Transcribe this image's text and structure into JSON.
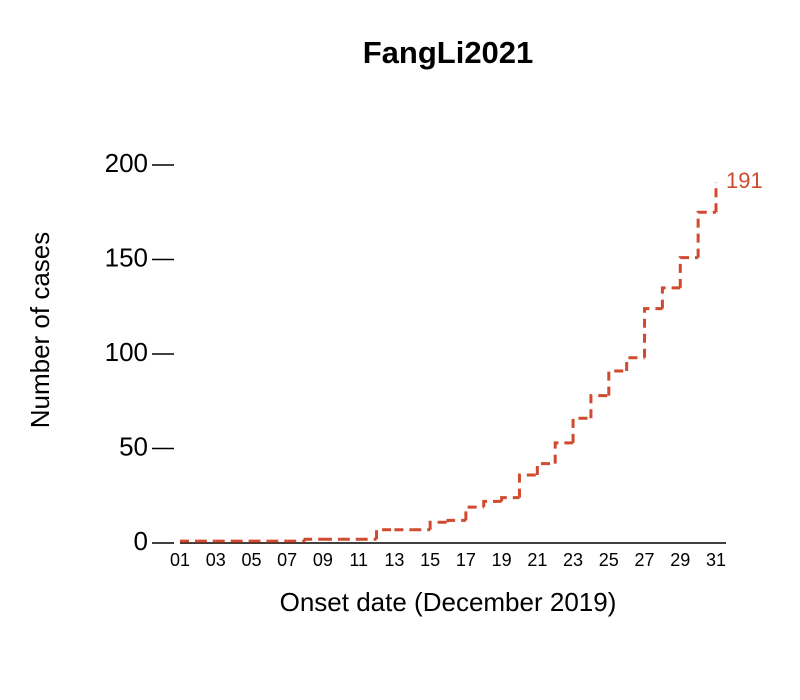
{
  "chart_data": {
    "type": "step",
    "title": "FangLi2021",
    "xlabel": "Onset date (December 2019)",
    "ylabel": "Number of cases",
    "x": [
      1,
      2,
      3,
      4,
      5,
      6,
      7,
      8,
      9,
      10,
      11,
      12,
      13,
      14,
      15,
      16,
      17,
      18,
      19,
      20,
      21,
      22,
      23,
      24,
      25,
      26,
      27,
      28,
      29,
      30,
      31
    ],
    "series": [
      {
        "name": "FangLi2021",
        "color": "#d04a2f",
        "values": [
          1,
          1,
          1,
          1,
          1,
          1,
          1,
          2,
          2,
          2,
          2,
          7,
          7,
          7,
          11,
          12,
          19,
          22,
          24,
          36,
          42,
          53,
          66,
          78,
          91,
          98,
          124,
          135,
          151,
          175,
          191
        ],
        "value_labels": [
          null,
          null,
          null,
          null,
          null,
          null,
          null,
          null,
          null,
          null,
          null,
          null,
          null,
          null,
          null,
          null,
          null,
          null,
          null,
          null,
          null,
          null,
          null,
          null,
          null,
          null,
          null,
          null,
          null,
          null,
          "191"
        ]
      }
    ],
    "xlim": [
      1,
      31
    ],
    "xticks": [
      {
        "value": 1,
        "label": "01"
      },
      {
        "value": 3,
        "label": "03"
      },
      {
        "value": 5,
        "label": "05"
      },
      {
        "value": 7,
        "label": "07"
      },
      {
        "value": 9,
        "label": "09"
      },
      11,
      13,
      15,
      17,
      19,
      21,
      23,
      25,
      27,
      29,
      31
    ],
    "ylim": [
      0,
      200
    ],
    "yticks": [
      0,
      50,
      100,
      150,
      200
    ]
  }
}
